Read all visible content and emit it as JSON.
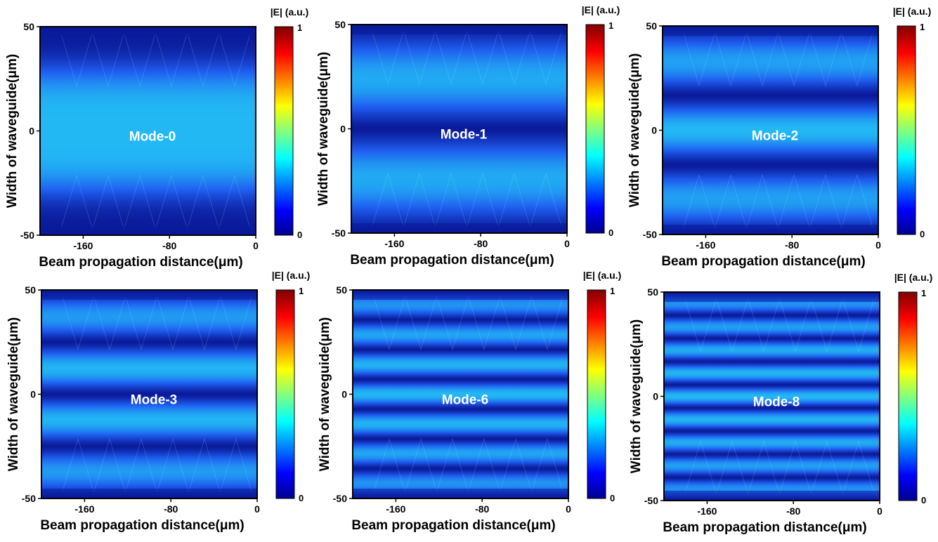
{
  "chart_data": [
    {
      "type": "heatmap",
      "title": "Mode-0",
      "mode_order": 0,
      "xlabel": "Beam propagation distance(μm)",
      "ylabel": "Width of waveguide(μm)",
      "xlim": [
        -200,
        0
      ],
      "ylim": [
        -50,
        50
      ],
      "xticks": [
        -160,
        -80,
        0
      ],
      "yticks": [
        -50,
        0,
        50
      ],
      "colorbar": {
        "label": "|E| (a.u.)",
        "min": 0,
        "max": 1,
        "ticks": [
          0,
          1
        ],
        "colormap": "jet"
      }
    },
    {
      "type": "heatmap",
      "title": "Mode-1",
      "mode_order": 1,
      "xlabel": "Beam propagation distance(μm)",
      "ylabel": "Width of waveguide(μm)",
      "xlim": [
        -200,
        0
      ],
      "ylim": [
        -50,
        50
      ],
      "xticks": [
        -160,
        -80,
        0
      ],
      "yticks": [
        -50,
        0,
        50
      ],
      "colorbar": {
        "label": "|E| (a.u.)",
        "min": 0,
        "max": 1,
        "ticks": [
          0,
          1
        ],
        "colormap": "jet"
      }
    },
    {
      "type": "heatmap",
      "title": "Mode-2",
      "mode_order": 2,
      "xlabel": "Beam propagation distance(μm)",
      "ylabel": "Width of waveguide(μm)",
      "xlim": [
        -200,
        0
      ],
      "ylim": [
        -50,
        50
      ],
      "xticks": [
        -160,
        -80,
        0
      ],
      "yticks": [
        -50,
        0,
        50
      ],
      "colorbar": {
        "label": "|E| (a.u.)",
        "min": 0,
        "max": 1,
        "ticks": [
          0,
          1
        ],
        "colormap": "jet"
      }
    },
    {
      "type": "heatmap",
      "title": "Mode-3",
      "mode_order": 3,
      "xlabel": "Beam propagation distance(μm)",
      "ylabel": "Width of waveguide(μm)",
      "xlim": [
        -200,
        0
      ],
      "ylim": [
        -50,
        50
      ],
      "xticks": [
        -160,
        -80,
        0
      ],
      "yticks": [
        -50,
        0,
        50
      ],
      "colorbar": {
        "label": "|E| (a.u.)",
        "min": 0,
        "max": 1,
        "ticks": [
          0,
          1
        ],
        "colormap": "jet"
      }
    },
    {
      "type": "heatmap",
      "title": "Mode-6",
      "mode_order": 6,
      "xlabel": "Beam propagation distance(μm)",
      "ylabel": "Width of waveguide(μm)",
      "xlim": [
        -200,
        0
      ],
      "ylim": [
        -50,
        50
      ],
      "xticks": [
        -160,
        -80,
        0
      ],
      "yticks": [
        -50,
        0,
        50
      ],
      "colorbar": {
        "label": "|E| (a.u.)",
        "min": 0,
        "max": 1,
        "ticks": [
          0,
          1
        ],
        "colormap": "jet"
      }
    },
    {
      "type": "heatmap",
      "title": "Mode-8",
      "mode_order": 8,
      "xlabel": "Beam propagation distance(μm)",
      "ylabel": "Width of waveguide(μm)",
      "xlim": [
        -200,
        0
      ],
      "ylim": [
        -50,
        50
      ],
      "xticks": [
        -160,
        -80,
        0
      ],
      "yticks": [
        -50,
        0,
        50
      ],
      "colorbar": {
        "label": "|E| (a.u.)",
        "min": 0,
        "max": 1,
        "ticks": [
          0,
          1
        ],
        "colormap": "jet"
      }
    }
  ],
  "colors": {
    "field_dark": "#0a1a9a",
    "field_mid": "#1f5ef0",
    "field_bright": "#22b8f4",
    "mode_label": "#ffffff",
    "axis": "#000000"
  }
}
